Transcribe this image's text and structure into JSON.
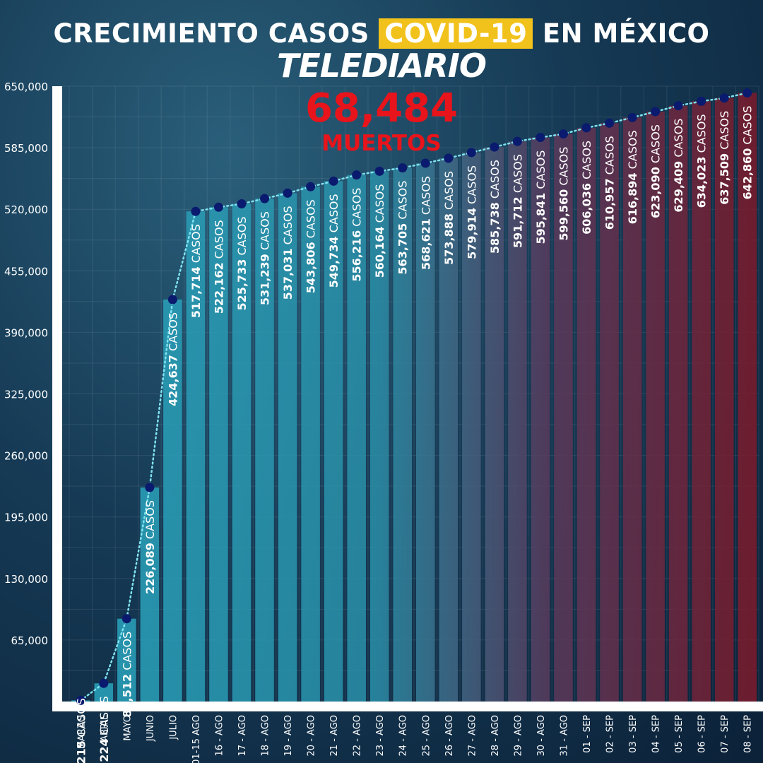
{
  "header": {
    "title_part1": "CRECIMIENTO CASOS",
    "title_highlight": "COVID-19",
    "title_part2": "EN MÉXICO",
    "brand": "TELEDIARIO"
  },
  "deaths": {
    "value": "68,484",
    "label": "MUERTOS"
  },
  "colors": {
    "highlight": "#f2c21c",
    "deaths": "#e8141b",
    "bar_start": "#2aa7c0",
    "bar_end": "#7d1a2a",
    "point": "#0a1a6e",
    "line": "#7fe3f0"
  },
  "chart_data": {
    "type": "bar",
    "title": "CRECIMIENTO CASOS COVID-19 EN MÉXICO",
    "categories": [
      "MARZO",
      "ABRIL",
      "MAYO",
      "JUNIO",
      "JULIO",
      "01-15 AGO",
      "16 - AGO",
      "17 - AGO",
      "18 - AGO",
      "19 - AGO",
      "20 - AGO",
      "21 - AGO",
      "22 - AGO",
      "23 - AGO",
      "24 - AGO",
      "25 - AGO",
      "26 - AGO",
      "27 - AGO",
      "28 - AGO",
      "29 - AGO",
      "30 - AGO",
      "31 - AGO",
      "01 - SEP",
      "02 - SEP",
      "03 - SEP",
      "04 - SEP",
      "05 - SEP",
      "06 - SEP",
      "07 - SEP",
      "08 - SEP"
    ],
    "values": [
      1215,
      19224,
      87512,
      226089,
      424637,
      517714,
      522162,
      525733,
      531239,
      537031,
      543806,
      549734,
      556216,
      560164,
      563705,
      568621,
      573888,
      579914,
      585738,
      591712,
      595841,
      599560,
      606036,
      610957,
      616894,
      623090,
      629409,
      634023,
      637509,
      642860
    ],
    "bar_labels_bold": [
      "1,215",
      "19,224",
      "87,512",
      "226,089",
      "424,637",
      "517,714",
      "522,162",
      "525,733",
      "531,239",
      "537,031",
      "543,806",
      "549,734",
      "556,216",
      "560,164",
      "563,705",
      "568,621",
      "573,888",
      "579,914",
      "585,738",
      "591,712",
      "595,841",
      "599,560",
      "606,036",
      "610,957",
      "616,894",
      "623,090",
      "629,409",
      "634,023",
      "637,509",
      "642,860"
    ],
    "bar_label_suffix": "CASOS",
    "y_ticks": [
      "65,000",
      "130,000",
      "195,000",
      "260,000",
      "325,000",
      "390,000",
      "455,000",
      "520,000",
      "585,000",
      "650,000"
    ],
    "ylim": [
      0,
      650000
    ],
    "grid": true,
    "legend": "none"
  }
}
